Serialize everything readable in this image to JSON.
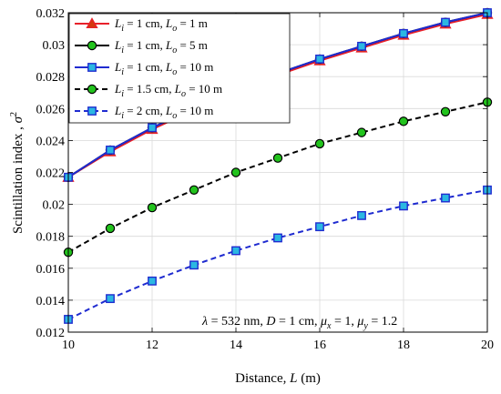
{
  "chart_data": {
    "type": "line",
    "xlabel": "Distance, L (m)",
    "ylabel": "Scintillation index , σ²",
    "xlim": [
      10,
      20
    ],
    "ylim": [
      0.012,
      0.032
    ],
    "x_ticks": [
      "10",
      "12",
      "14",
      "16",
      "18",
      "20"
    ],
    "y_ticks": [
      "0.012",
      "0.014",
      "0.016",
      "0.018",
      "0.02",
      "0.022",
      "0.024",
      "0.026",
      "0.028",
      "0.03",
      "0.032"
    ],
    "grid": "on",
    "legend_position": "top-left",
    "annotation": "λ = 532 nm, D = 1 cm, μx = 1,  μy = 1.2",
    "x": [
      10,
      11,
      12,
      13,
      14,
      15,
      16,
      17,
      18,
      19,
      20
    ],
    "series": [
      {
        "name": "Li = 1 cm, Lo = 1 m",
        "values": [
          0.0217,
          0.0233,
          0.0247,
          0.0259,
          0.027,
          0.0281,
          0.029,
          0.0298,
          0.0306,
          0.0313,
          0.0319
        ],
        "line_color": "#e8202a",
        "line_style": "solid",
        "marker": "triangle",
        "marker_fill": "#d4380d",
        "marker_edge": "#e8202a"
      },
      {
        "name": "Li = 1 cm, Lo = 5 m",
        "values": [
          0.0217,
          0.0234,
          0.0248,
          0.026,
          0.0271,
          0.0282,
          0.0291,
          0.0299,
          0.0307,
          0.0314,
          0.032
        ],
        "line_color": "#000000",
        "line_style": "solid",
        "marker": "circle",
        "marker_fill": "#22c31d",
        "marker_edge": "#000000"
      },
      {
        "name": "Li = 1 cm, Lo = 10 m",
        "values": [
          0.0217,
          0.0234,
          0.0248,
          0.026,
          0.0271,
          0.0282,
          0.0291,
          0.0299,
          0.0307,
          0.0314,
          0.032
        ],
        "line_color": "#1f2bd0",
        "line_style": "solid",
        "marker": "square",
        "marker_fill": "#2bb7e2",
        "marker_edge": "#1f2bd0"
      },
      {
        "name": "Li = 1.5 cm, Lo = 10 m",
        "values": [
          0.017,
          0.0185,
          0.0198,
          0.0209,
          0.022,
          0.0229,
          0.0238,
          0.0245,
          0.0252,
          0.0258,
          0.0264
        ],
        "line_color": "#000000",
        "line_style": "dashed",
        "marker": "circle",
        "marker_fill": "#22c31d",
        "marker_edge": "#000000"
      },
      {
        "name": "Li = 2 cm, Lo = 10 m",
        "values": [
          0.0128,
          0.0141,
          0.0152,
          0.0162,
          0.0171,
          0.0179,
          0.0186,
          0.0193,
          0.0199,
          0.0204,
          0.0209
        ],
        "line_color": "#1f2bd0",
        "line_style": "dashed",
        "marker": "square",
        "marker_fill": "#2bb7e2",
        "marker_edge": "#1f2bd0"
      }
    ]
  }
}
